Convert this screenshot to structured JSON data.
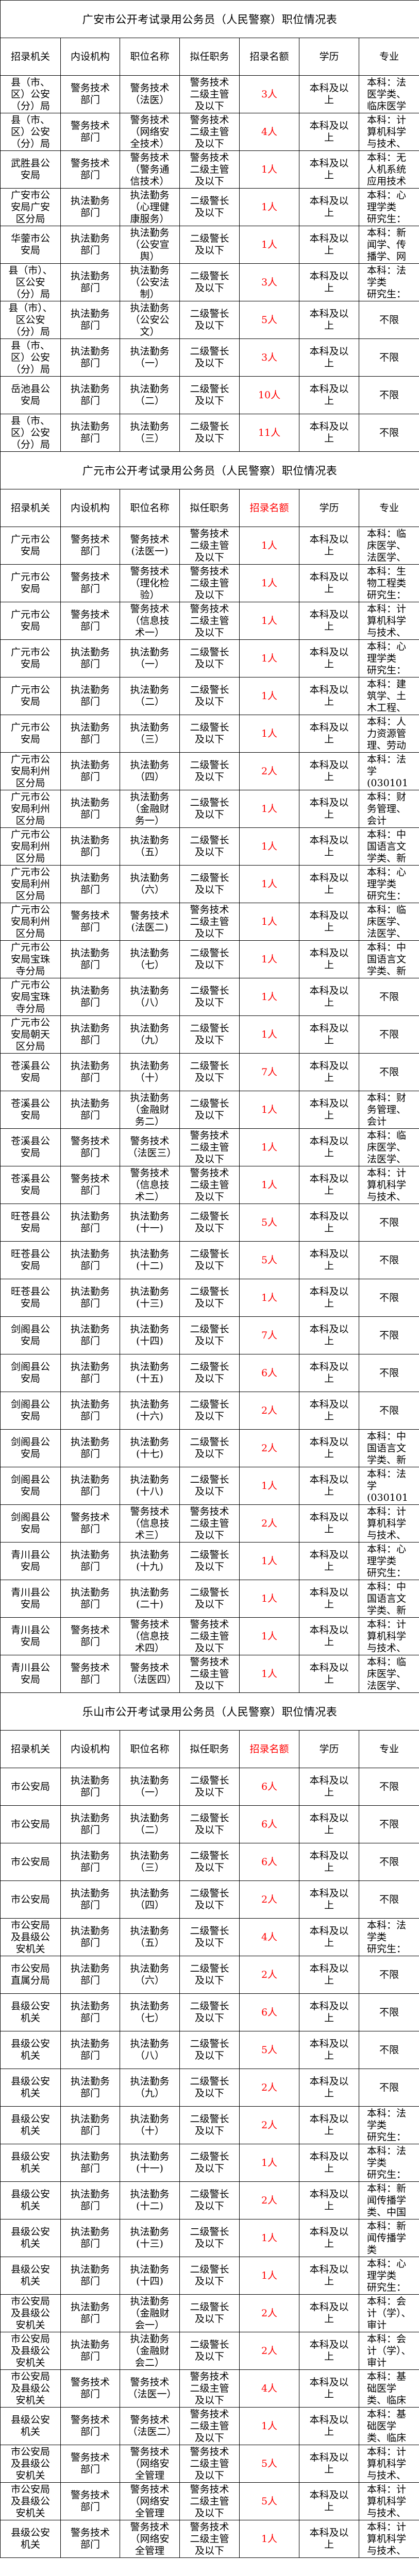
{
  "colors": {
    "quota": "#ff0000",
    "text": "#000000"
  },
  "headers": [
    "招录机关",
    "内设机构",
    "职位名称",
    "拟任职务",
    "招录名额",
    "学历",
    "专业"
  ],
  "tables": [
    {
      "title": "广安市公开考试录用公务员（人民警察）职位情况表",
      "quota_header_red": false,
      "rows": [
        [
          "县（市、区）公安（分）局",
          "警务技术部门",
          "警务技术（法医）",
          "警务技术二级主管及以下",
          "3人",
          "本科及以上",
          "本科：法医学类、临床医学"
        ],
        [
          "县（市、区）公安（分）局",
          "警务技术部门",
          "警务技术（网络安全技术）",
          "警务技术二级主管及以下",
          "4人",
          "本科及以上",
          "本科：计算机科学与技术、"
        ],
        [
          "武胜县公安局",
          "警务技术部门",
          "警务技术（警务通信技术）",
          "警务技术二级主管及以下",
          "1人",
          "本科及以上",
          "本科：无人机系统应用技术"
        ],
        [
          "广安市公安局广安区分局",
          "执法勤务部门",
          "执法勤务（心理健康服务）",
          "二级警长及以下",
          "1人",
          "本科及以上",
          "本科：心\n理学类\n研究生："
        ],
        [
          "华蓥市公安局",
          "执法勤务部门",
          "执法勤务（公安宣舆）",
          "二级警长及以下",
          "1人",
          "本科及以上",
          "本科：新闻学、传播学、网"
        ],
        [
          "县（市）、区公安（分）局",
          "执法勤务部门",
          "执法勤务（公安法制）",
          "二级警长及以下",
          "3人",
          "本科及以上",
          "本科：法\n学类\n研究生："
        ],
        [
          "县（市）、区公安（分）局",
          "执法勤务部门",
          "执法勤务（公安公文）",
          "二级警长及以下",
          "5人",
          "本科及以上",
          "不限"
        ],
        [
          "县（市、区）公安（分）局",
          "执法勤务部门",
          "执法勤务（一）",
          "二级警长及以下",
          "3人",
          "本科及以上",
          "不限"
        ],
        [
          "岳池县公安局",
          "执法勤务部门",
          "执法勤务（二）",
          "二级警长及以下",
          "10人",
          "本科及以上",
          "不限"
        ],
        [
          "县（市、区）公安（分）局",
          "执法勤务部门",
          "执法勤务（三）",
          "二级警长及以下",
          "11人",
          "本科及以上",
          "不限"
        ]
      ]
    },
    {
      "title": "广元市公开考试录用公务员（人民警察）职位情况表",
      "quota_header_red": true,
      "rows": [
        [
          "广元市公安局",
          "警务技术部门",
          "警务技术(法医一)",
          "警务技术二级主管及以下",
          "1人",
          "本科及以上",
          "本科：临床医学、法医学、"
        ],
        [
          "广元市公安局",
          "警务技术部门",
          "警务技术（理化检验）",
          "警务技术二级主管及以下",
          "1人",
          "本科及以上",
          "本科：生物工程类\n研究生："
        ],
        [
          "广元市公安局",
          "警务技术部门",
          "警务技术（信息技术一）",
          "警务技术二级主管及以下",
          "1人",
          "本科及以上",
          "本科：计算机科学与技术、"
        ],
        [
          "广元市公安局",
          "执法勤务部门",
          "执法勤务（一）",
          "二级警长及以下",
          "1人",
          "本科及以上",
          "本科：心\n理学类\n研究生："
        ],
        [
          "广元市公安局",
          "执法勤务部门",
          "执法勤务（二）",
          "二级警长及以下",
          "1人",
          "本科及以上",
          "本科：建筑学、土木工程、"
        ],
        [
          "广元市公安局",
          "执法勤务部门",
          "执法勤务（三）",
          "二级警长及以下",
          "1人",
          "本科及以上",
          "本科：人力资源管理、劳动"
        ],
        [
          "广元市公安局利州区分局",
          "执法勤务部门",
          "执法勤务（四）",
          "二级警长及以下",
          "2人",
          "本科及以上",
          "本科：法\n学\n(030101K"
        ],
        [
          "广元市公安局利州区分局",
          "执法勤务部门",
          "执法勤务（金融财务一）",
          "二级警长及以下",
          "1人",
          "本科及以上",
          "本科：财务管理、\n会计"
        ],
        [
          "广元市公安局利州区分局",
          "执法勤务部门",
          "执法勤务（五）",
          "二级警长及以下",
          "1人",
          "本科及以上",
          "本科：中国语言文学类、新"
        ],
        [
          "广元市公安局利州区分局",
          "执法勤务部门",
          "执法勤务（六）",
          "二级警长及以下",
          "1人",
          "本科及以上",
          "本科：心\n理学类\n研究生："
        ],
        [
          "广元市公安局利州区分局",
          "警务技术部门",
          "警务技术(法医二)",
          "警务技术二级主管及以下",
          "1人",
          "本科及以上",
          "本科：临床医学、法医学、"
        ],
        [
          "广元市公安局宝珠寺分局",
          "执法勤务部门",
          "执法勤务（七）",
          "二级警长及以下",
          "1人",
          "本科及以上",
          "本科：中国语言文学类、新"
        ],
        [
          "广元市公安局宝珠寺分局",
          "执法勤务部门",
          "执法勤务（八）",
          "二级警长及以下",
          "1人",
          "本科及以上",
          "不限"
        ],
        [
          "广元市公安局朝天区分局",
          "执法勤务部门",
          "执法勤务（九）",
          "二级警长及以下",
          "1人",
          "本科及以上",
          "不限"
        ],
        [
          "苍溪县公安局",
          "执法勤务部门",
          "执法勤务（十）",
          "二级警长及以下",
          "7人",
          "本科及以上",
          "不限"
        ],
        [
          "苍溪县公安局",
          "执法勤务部门",
          "执法勤务（金融财务二）",
          "二级警长及以下",
          "1人",
          "本科及以上",
          "本科：财务管理、\n会计"
        ],
        [
          "苍溪县公安局",
          "警务技术部门",
          "警务技术（法医三）",
          "警务技术二级主管及以下",
          "1人",
          "本科及以上",
          "本科：临床医学、法医学、"
        ],
        [
          "苍溪县公安局",
          "警务技术部门",
          "警务技术（信息技术二）",
          "警务技术二级主管及以下",
          "1人",
          "本科及以上",
          "本科：计算机科学与技术、"
        ],
        [
          "旺苍县公安局",
          "执法勤务部门",
          "执法勤务(十一)",
          "二级警长及以下",
          "5人",
          "本科及以上",
          "不限"
        ],
        [
          "旺苍县公安局",
          "执法勤务部门",
          "执法勤务(十二)",
          "二级警长及以下",
          "5人",
          "本科及以上",
          "不限"
        ],
        [
          "旺苍县公安局",
          "执法勤务部门",
          "执法勤务(十三)",
          "二级警长及以下",
          "1人",
          "本科及以上",
          "不限"
        ],
        [
          "剑阁县公安局",
          "执法勤务部门",
          "执法勤务(十四)",
          "二级警长及以下",
          "7人",
          "本科及以上",
          "不限"
        ],
        [
          "剑阁县公安局",
          "执法勤务部门",
          "执法勤务(十五)",
          "二级警长及以下",
          "6人",
          "本科及以上",
          "不限"
        ],
        [
          "剑阁县公安局",
          "执法勤务部门",
          "执法勤务(十六)",
          "二级警长及以下",
          "2人",
          "本科及以上",
          "不限"
        ],
        [
          "剑阁县公安局",
          "执法勤务部门",
          "执法勤务(十七)",
          "二级警长及以下",
          "2人",
          "本科及以上",
          "本科：中国语言文学类、新"
        ],
        [
          "剑阁县公安局",
          "执法勤务部门",
          "执法勤务(十八)",
          "二级警长及以下",
          "1人",
          "本科及以上",
          "本科：法\n学\n(030101K"
        ],
        [
          "剑阁县公安局",
          "警务技术部门",
          "警务技术（信息技术三）",
          "警务技术二级主管及以下",
          "2人",
          "本科及以上",
          "本科：计算机科学与技术、"
        ],
        [
          "青川县公安局",
          "执法勤务部门",
          "执法勤务(十九)",
          "二级警长及以下",
          "1人",
          "本科及以上",
          "本科：心\n理学类\n研究生："
        ],
        [
          "青川县公安局",
          "执法勤务部门",
          "执法勤务(二十)",
          "二级警长及以下",
          "1人",
          "本科及以上",
          "本科：中国语言文学类、新"
        ],
        [
          "青川县公安局",
          "警务技术部门",
          "警务技术（信息技术四）",
          "警务技术二级主管及以下",
          "1人",
          "本科及以上",
          "本科：计算机科学与技术、"
        ],
        [
          "青川县公安局",
          "警务技术部门",
          "警务技术（法医四）",
          "警务技术二级主管及以下",
          "1人",
          "本科及以上",
          "本科：临床医学、法医学、"
        ]
      ]
    },
    {
      "title": "乐山市公开考试录用公务员（人民警察）职位情况表",
      "quota_header_red": true,
      "rows": [
        [
          "市公安局",
          "执法勤务部门",
          "执法勤务（一）",
          "二级警长及以下",
          "6人",
          "本科及以上",
          "不限"
        ],
        [
          "市公安局",
          "执法勤务部门",
          "执法勤务（二）",
          "二级警长及以下",
          "6人",
          "本科及以上",
          "不限"
        ],
        [
          "市公安局",
          "执法勤务部门",
          "执法勤务（三）",
          "二级警长及以下",
          "6人",
          "本科及以上",
          "不限"
        ],
        [
          "市公安局",
          "执法勤务部门",
          "执法勤务（四）",
          "二级警长及以下",
          "2人",
          "本科及以上",
          "不限"
        ],
        [
          "市公安局及县级公安机关",
          "执法勤务部门",
          "执法勤务（五）",
          "二级警长及以下",
          "4人",
          "本科及以上",
          "本科：法\n学类\n研究生："
        ],
        [
          "市公安局直属分局",
          "执法勤务部门",
          "执法勤务（六）",
          "二级警长及以下",
          "2人",
          "本科及以上",
          "不限"
        ],
        [
          "县级公安机关",
          "执法勤务部门",
          "执法勤务（七）",
          "二级警长及以下",
          "6人",
          "本科及以上",
          "不限"
        ],
        [
          "县级公安机关",
          "执法勤务部门",
          "执法勤务（八）",
          "二级警长及以下",
          "5人",
          "本科及以上",
          "不限"
        ],
        [
          "县级公安机关",
          "执法勤务部门",
          "执法勤务（九）",
          "二级警长及以下",
          "2人",
          "本科及以上",
          "不限"
        ],
        [
          "县级公安机关",
          "执法勤务部门",
          "执法勤务（十）",
          "二级警长及以下",
          "2人",
          "本科及以上",
          "本科：法\n学类\n研究生："
        ],
        [
          "县级公安机关",
          "执法勤务部门",
          "执法勤务(十一)",
          "二级警长及以下",
          "1人",
          "本科及以上",
          "本科：法\n学类\n研究生："
        ],
        [
          "县级公安机关",
          "执法勤务部门",
          "执法勤务(十二)",
          "二级警长及以下",
          "2人",
          "本科及以上",
          "本科：新闻传播学类、中国"
        ],
        [
          "县级公安机关",
          "执法勤务部门",
          "执法勤务(十三)",
          "二级警长及以下",
          "1人",
          "本科及以上",
          "本科：新闻传播学类"
        ],
        [
          "县级公安机关",
          "执法勤务部门",
          "执法勤务(十四)",
          "二级警长及以下",
          "1人",
          "本科及以上",
          "本科：心\n理学类\n研究生："
        ],
        [
          "市公安局及县级公安机关",
          "执法勤务部门",
          "执法勤务（金融财会一）",
          "二级警长及以下",
          "2人",
          "本科及以上",
          "本科：会计（学）、审计"
        ],
        [
          "市公安局及县级公安机关",
          "执法勤务部门",
          "执法勤务（金融财会二）",
          "二级警长及以下",
          "2人",
          "本科及以上",
          "本科：会计（学）、审计"
        ],
        [
          "市公安局及县级公安机关",
          "警务技术部门",
          "警务技术（法医一）",
          "警务技术二级主管及以下",
          "4人",
          "本科及以上",
          "本科：基础医学类、临床医"
        ],
        [
          "县级公安机关",
          "警务技术部门",
          "警务技术（法医二）",
          "警务技术二级主管及以下",
          "1人",
          "本科及以上",
          "本科：基础医学类、临床医"
        ],
        [
          "市公安局及县级公安机关",
          "警务技术部门",
          "警务技术（网络安全管理",
          "警务技术二级主管及以下",
          "5人",
          "本科及以上",
          "本科：计算机科学与技术、"
        ],
        [
          "市公安局及县级公安机关",
          "警务技术部门",
          "警务技术（网络安全管理",
          "警务技术二级主管及以下",
          "5人",
          "本科及以上",
          "本科：计算机科学与技术、"
        ],
        [
          "县级公安机关",
          "警务技术部门",
          "警务技术（网络安全管理",
          "警务技术二级主管及以下",
          "1人",
          "本科及以上",
          "本科：计算机科学与技术、"
        ]
      ]
    }
  ]
}
